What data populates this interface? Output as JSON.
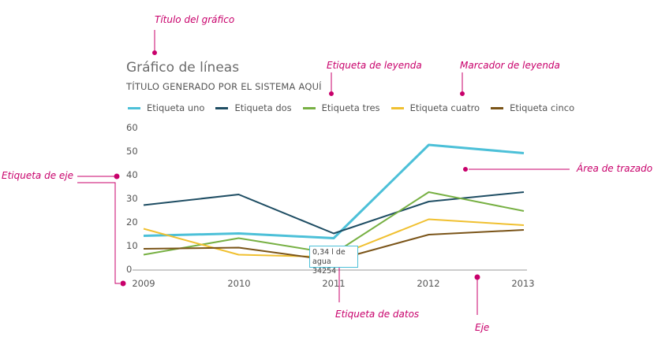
{
  "colors": {
    "series": [
      "#4cc0d8",
      "#1e4d63",
      "#77b043",
      "#f0c030",
      "#7a5418"
    ],
    "annotation": "#c8006b",
    "axis": "#999999"
  },
  "annotations": {
    "chart_title": "Título del gráfico",
    "legend_label": "Etiqueta de leyenda",
    "legend_marker": "Marcador de leyenda",
    "axis_label": "Etiqueta de eje",
    "plot_area": "Área de trazado",
    "data_label": "Etiqueta de datos",
    "axis": "Eje"
  },
  "tooltip": {
    "line1": "0,34 l de",
    "line2": "agua 34254"
  },
  "chart_data": {
    "type": "line",
    "title": "Gráfico de líneas",
    "subtitle": "TÍTULO GENERADO POR EL SISTEMA AQUÍ",
    "x": [
      "2009",
      "2010",
      "2011",
      "2012",
      "2013"
    ],
    "ylim": [
      0,
      60
    ],
    "yticks": [
      0,
      10,
      20,
      30,
      40,
      50,
      60
    ],
    "grid": false,
    "legend_position": "top",
    "series": [
      {
        "name": "Etiqueta uno",
        "values": [
          14.5,
          15.5,
          13.5,
          53,
          49.5
        ]
      },
      {
        "name": "Etiqueta dos",
        "values": [
          27.5,
          32,
          15.5,
          29,
          33
        ]
      },
      {
        "name": "Etiqueta tres",
        "values": [
          6.5,
          13.5,
          7,
          33,
          25
        ]
      },
      {
        "name": "Etiqueta cuatro",
        "values": [
          17.5,
          6.5,
          5.5,
          21.5,
          19
        ]
      },
      {
        "name": "Etiqueta cinco",
        "values": [
          9,
          9.5,
          4,
          15,
          17
        ]
      }
    ]
  }
}
